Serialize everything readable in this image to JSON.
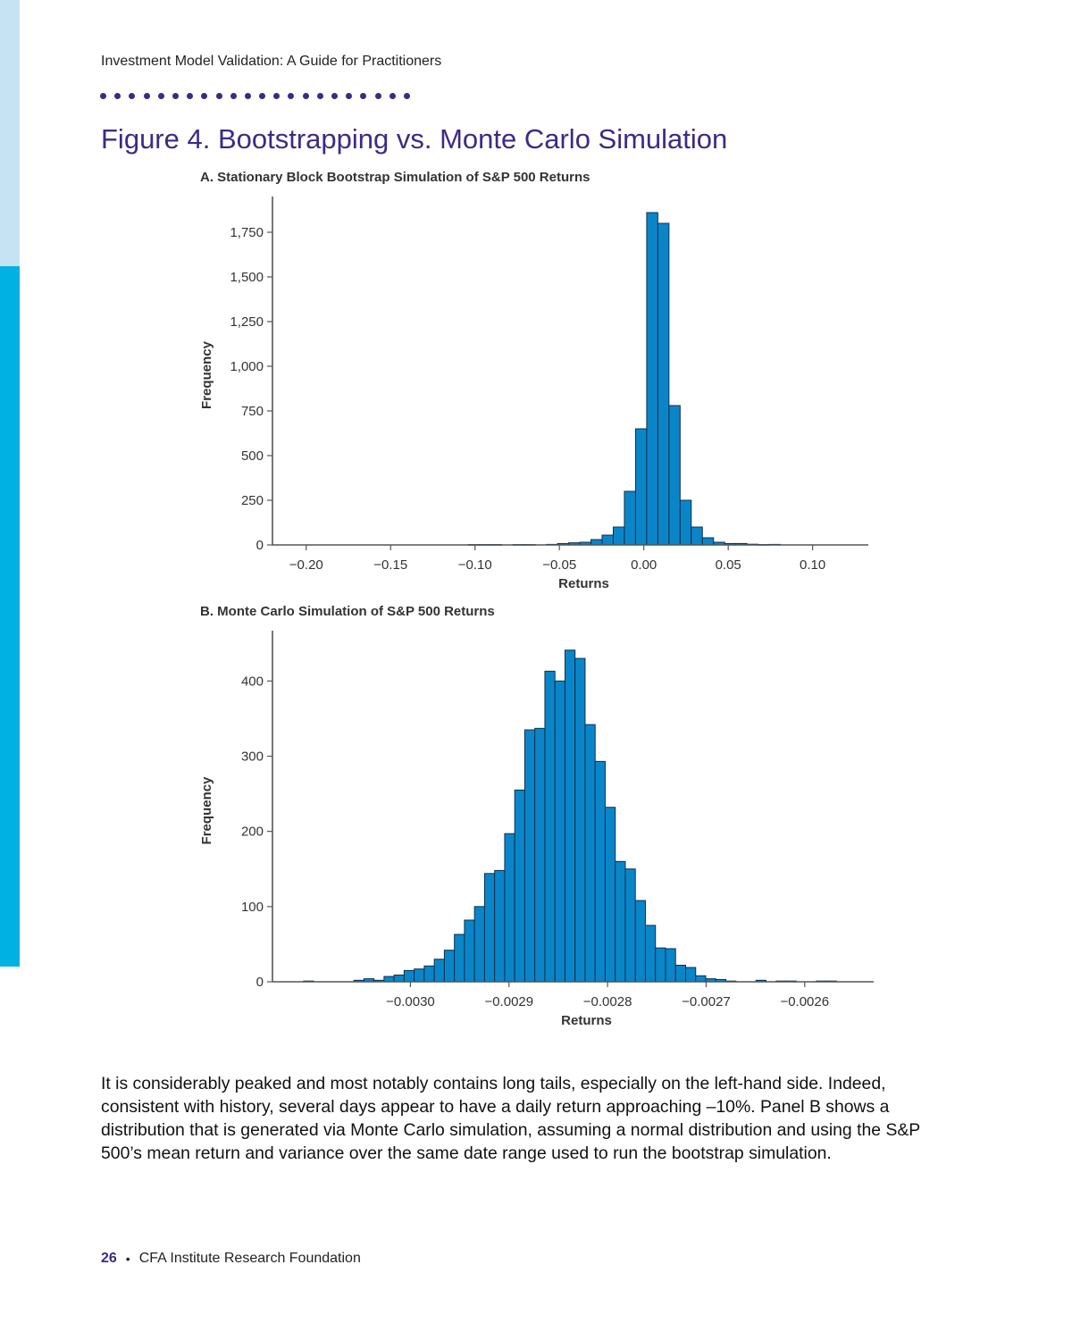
{
  "header": {
    "running_title": "Investment Model Validation: A Guide for Practitioners",
    "figure_title": "Figure 4. Bootstrapping vs. Monte Carlo Simulation"
  },
  "colors": {
    "accent": "#3d2a85",
    "bar_fill": "#0a86c8",
    "bar_stroke": "#0d2f4f",
    "side_light": "#c5e3f3",
    "side_dark": "#00b2e3"
  },
  "chart_data": [
    {
      "type": "bar",
      "title": "A. Stationary Block Bootstrap Simulation of S&P 500 Returns",
      "xlabel": "Returns",
      "ylabel": "Frequency",
      "xlim": [
        -0.22,
        0.133
      ],
      "ylim": [
        0,
        1900
      ],
      "xticks": [
        -0.2,
        -0.15,
        -0.1,
        -0.05,
        0.0,
        0.05,
        0.1
      ],
      "xtick_labels": [
        "−0.20",
        "−0.15",
        "−0.10",
        "−0.05",
        "0.00",
        "0.05",
        "0.10"
      ],
      "yticks": [
        0,
        250,
        500,
        750,
        1000,
        1250,
        1500,
        1750
      ],
      "ytick_labels": [
        "0",
        "250",
        "500",
        "750",
        "1,000",
        "1,250",
        "1,500",
        "1,750"
      ],
      "bin_width": 0.0066,
      "bins": [
        {
          "x": -0.104,
          "y": 2
        },
        {
          "x": -0.0974,
          "y": 2
        },
        {
          "x": -0.0908,
          "y": 2
        },
        {
          "x": -0.0775,
          "y": 2
        },
        {
          "x": -0.0709,
          "y": 2
        },
        {
          "x": -0.0577,
          "y": 3
        },
        {
          "x": -0.0511,
          "y": 8
        },
        {
          "x": -0.0445,
          "y": 12
        },
        {
          "x": -0.0379,
          "y": 15
        },
        {
          "x": -0.0313,
          "y": 30
        },
        {
          "x": -0.0247,
          "y": 55
        },
        {
          "x": -0.0181,
          "y": 100
        },
        {
          "x": -0.0115,
          "y": 300
        },
        {
          "x": -0.0049,
          "y": 650
        },
        {
          "x": 0.0017,
          "y": 1860
        },
        {
          "x": 0.0083,
          "y": 1800
        },
        {
          "x": 0.0149,
          "y": 780
        },
        {
          "x": 0.0215,
          "y": 250
        },
        {
          "x": 0.0281,
          "y": 100
        },
        {
          "x": 0.0347,
          "y": 40
        },
        {
          "x": 0.0413,
          "y": 15
        },
        {
          "x": 0.0479,
          "y": 8
        },
        {
          "x": 0.0545,
          "y": 8
        },
        {
          "x": 0.0611,
          "y": 4
        },
        {
          "x": 0.0677,
          "y": 2
        },
        {
          "x": 0.0743,
          "y": 3
        }
      ]
    },
    {
      "type": "bar",
      "title": "B. Monte Carlo Simulation of S&P 500 Returns",
      "xlabel": "Returns",
      "ylabel": "Frequency",
      "xlim": [
        -0.00314,
        -0.00253
      ],
      "ylim": [
        0,
        455
      ],
      "xticks": [
        -0.003,
        -0.0029,
        -0.0028,
        -0.0027,
        -0.0026
      ],
      "xtick_labels": [
        "−0.0030",
        "−0.0029",
        "−0.0028",
        "−0.0027",
        "−0.0026"
      ],
      "yticks": [
        0,
        100,
        200,
        300,
        400
      ],
      "ytick_labels": [
        "0",
        "100",
        "200",
        "300",
        "400"
      ],
      "bin_width": 1.02e-05,
      "bins": [
        {
          "x": -0.0031084,
          "y": 1
        },
        {
          "x": -0.0030574,
          "y": 2
        },
        {
          "x": -0.0030472,
          "y": 4
        },
        {
          "x": -0.003037,
          "y": 2
        },
        {
          "x": -0.0030268,
          "y": 7
        },
        {
          "x": -0.0030166,
          "y": 9
        },
        {
          "x": -0.0030064,
          "y": 15
        },
        {
          "x": -0.0029962,
          "y": 17
        },
        {
          "x": -0.002986,
          "y": 21
        },
        {
          "x": -0.0029758,
          "y": 30
        },
        {
          "x": -0.0029656,
          "y": 42
        },
        {
          "x": -0.0029554,
          "y": 63
        },
        {
          "x": -0.0029452,
          "y": 82
        },
        {
          "x": -0.002935,
          "y": 100
        },
        {
          "x": -0.0029248,
          "y": 144
        },
        {
          "x": -0.0029146,
          "y": 148
        },
        {
          "x": -0.0029044,
          "y": 197
        },
        {
          "x": -0.0028942,
          "y": 255
        },
        {
          "x": -0.002884,
          "y": 335
        },
        {
          "x": -0.0028738,
          "y": 337
        },
        {
          "x": -0.0028636,
          "y": 413
        },
        {
          "x": -0.0028534,
          "y": 400
        },
        {
          "x": -0.0028432,
          "y": 441
        },
        {
          "x": -0.002833,
          "y": 430
        },
        {
          "x": -0.0028228,
          "y": 342
        },
        {
          "x": -0.0028126,
          "y": 293
        },
        {
          "x": -0.0028024,
          "y": 232
        },
        {
          "x": -0.0027922,
          "y": 160
        },
        {
          "x": -0.002782,
          "y": 150
        },
        {
          "x": -0.0027718,
          "y": 108
        },
        {
          "x": -0.0027616,
          "y": 75
        },
        {
          "x": -0.0027514,
          "y": 45
        },
        {
          "x": -0.0027412,
          "y": 44
        },
        {
          "x": -0.002731,
          "y": 22
        },
        {
          "x": -0.0027208,
          "y": 19
        },
        {
          "x": -0.0027106,
          "y": 8
        },
        {
          "x": -0.0027004,
          "y": 4
        },
        {
          "x": -0.0026902,
          "y": 3
        },
        {
          "x": -0.00268,
          "y": 1
        },
        {
          "x": -0.0026494,
          "y": 2
        },
        {
          "x": -0.002629,
          "y": 1
        },
        {
          "x": -0.0026188,
          "y": 1
        },
        {
          "x": -0.0025882,
          "y": 1
        },
        {
          "x": -0.002578,
          "y": 1
        }
      ]
    }
  ],
  "body_text": "It is considerably peaked and most notably contains long tails, especially on the left-hand side. Indeed, consistent with history, several days appear to have a daily return approaching –10%. Panel B shows a distribution that is generated via Monte Carlo simulation, assuming a normal distribution and using the S&P 500’s mean return and variance over the same date range used to run the bootstrap simulation.",
  "footer": {
    "page_number": "26",
    "bullet": "•",
    "publisher": "CFA Institute Research Foundation"
  }
}
